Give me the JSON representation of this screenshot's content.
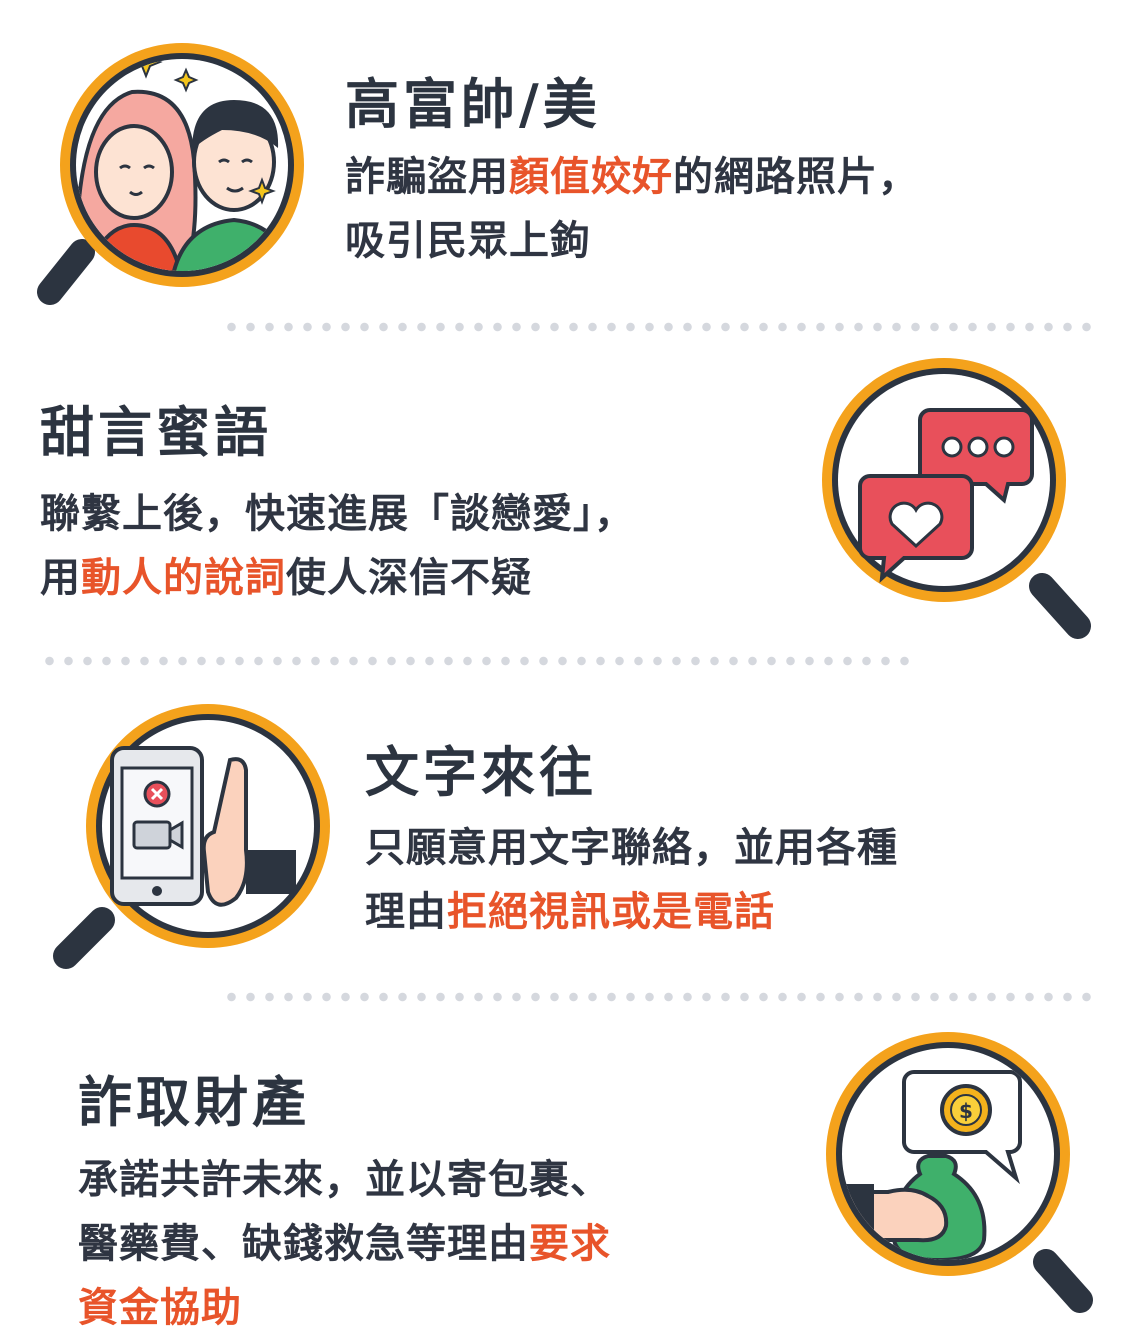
{
  "sections": [
    {
      "title": "高富帥/美",
      "lines": [
        [
          {
            "t": "詐騙盜用",
            "h": false
          },
          {
            "t": "顏值姣好",
            "h": true
          },
          {
            "t": "的網路照片，",
            "h": false
          }
        ],
        [
          {
            "t": "吸引民眾上鉤",
            "h": false
          }
        ]
      ],
      "icon": "couple-illustration-icon"
    },
    {
      "title": "甜言蜜語",
      "lines": [
        [
          {
            "t": "聯繫上後，快速進展「談戀愛」，",
            "h": false
          }
        ],
        [
          {
            "t": "用",
            "h": false
          },
          {
            "t": "動人的說詞",
            "h": true
          },
          {
            "t": "使人深信不疑",
            "h": false
          }
        ]
      ],
      "icon": "chat-heart-icon"
    },
    {
      "title": "文字來往",
      "lines": [
        [
          {
            "t": "只願意用文字聯絡，並用各種",
            "h": false
          }
        ],
        [
          {
            "t": "理由",
            "h": false
          },
          {
            "t": "拒絕視訊或是電話",
            "h": true
          }
        ]
      ],
      "icon": "phone-reject-icon"
    },
    {
      "title": "詐取財產",
      "lines": [
        [
          {
            "t": "承諾共許未來，並以寄包裹、",
            "h": false
          }
        ],
        [
          {
            "t": "醫藥費、缺錢救急等理由",
            "h": false
          },
          {
            "t": "要求",
            "h": true
          }
        ],
        [
          {
            "t": "資金協助",
            "h": true
          }
        ]
      ],
      "icon": "money-bag-icon"
    }
  ],
  "colors": {
    "ring": "#f4a21c",
    "handle": "#2c3440",
    "text": "#2f3542",
    "highlight": "#e8542a",
    "divider": "#d5d8de"
  }
}
